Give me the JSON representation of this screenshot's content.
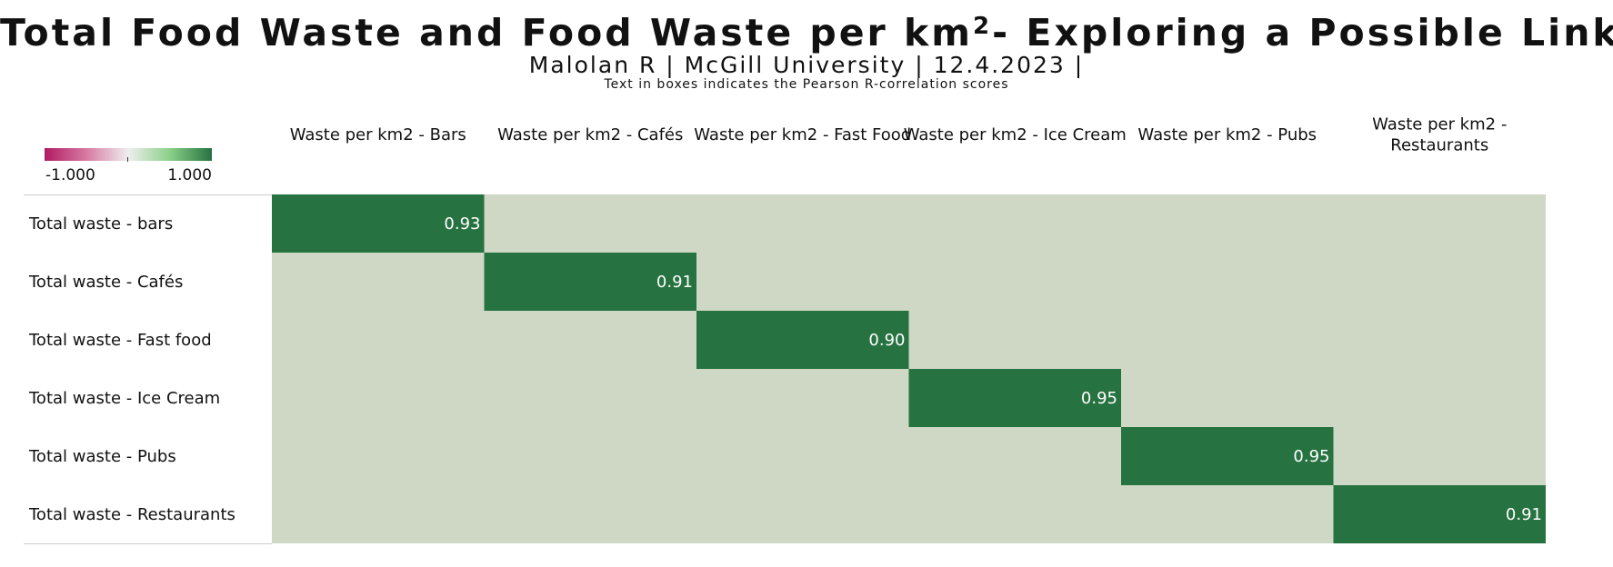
{
  "header": {
    "title_main": "Total Food Waste and Food Waste per km",
    "title_sup": "2",
    "title_rest": "- Exploring a Possible Link",
    "subtitle": "Malolan R | McGill University | 12.4.2023 |",
    "caption": "Text in boxes indicates the Pearson R-correlation scores"
  },
  "legend": {
    "min_label": "-1.000",
    "max_label": "1.000"
  },
  "chart_data": {
    "type": "heatmap",
    "columns": [
      "Waste per km2 - Bars",
      "Waste per km2 - Cafés",
      "Waste per km2 - Fast Food",
      "Waste per km2 - Ice Cream",
      "Waste per km2 - Pubs",
      "Waste per km2 - Restaurants"
    ],
    "rows": [
      "Total waste - bars",
      "Total waste - Cafés",
      "Total waste - Fast food",
      "Total waste - Ice Cream",
      "Total waste - Pubs",
      "Total waste - Restaurants"
    ],
    "values": [
      [
        0.93,
        null,
        null,
        null,
        null,
        null
      ],
      [
        null,
        0.91,
        null,
        null,
        null,
        null
      ],
      [
        null,
        null,
        0.9,
        null,
        null,
        null
      ],
      [
        null,
        null,
        null,
        0.95,
        null,
        null
      ],
      [
        null,
        null,
        null,
        null,
        0.95,
        null
      ],
      [
        null,
        null,
        null,
        null,
        null,
        0.91
      ]
    ],
    "value_labels": [
      [
        "0.93",
        "",
        "",
        "",
        "",
        ""
      ],
      [
        "",
        "0.91",
        "",
        "",
        "",
        ""
      ],
      [
        "",
        "",
        "0.90",
        "",
        "",
        ""
      ],
      [
        "",
        "",
        "",
        "0.95",
        "",
        ""
      ],
      [
        "",
        "",
        "",
        "",
        "0.95",
        ""
      ],
      [
        "",
        "",
        "",
        "",
        "",
        "0.91"
      ]
    ],
    "color_range": [
      -1,
      1
    ],
    "colors": {
      "high": "#267240",
      "background": "#cfd8c4",
      "low": "#b01b63",
      "mid": "#eeeeee"
    },
    "legend_position": "top-left"
  }
}
